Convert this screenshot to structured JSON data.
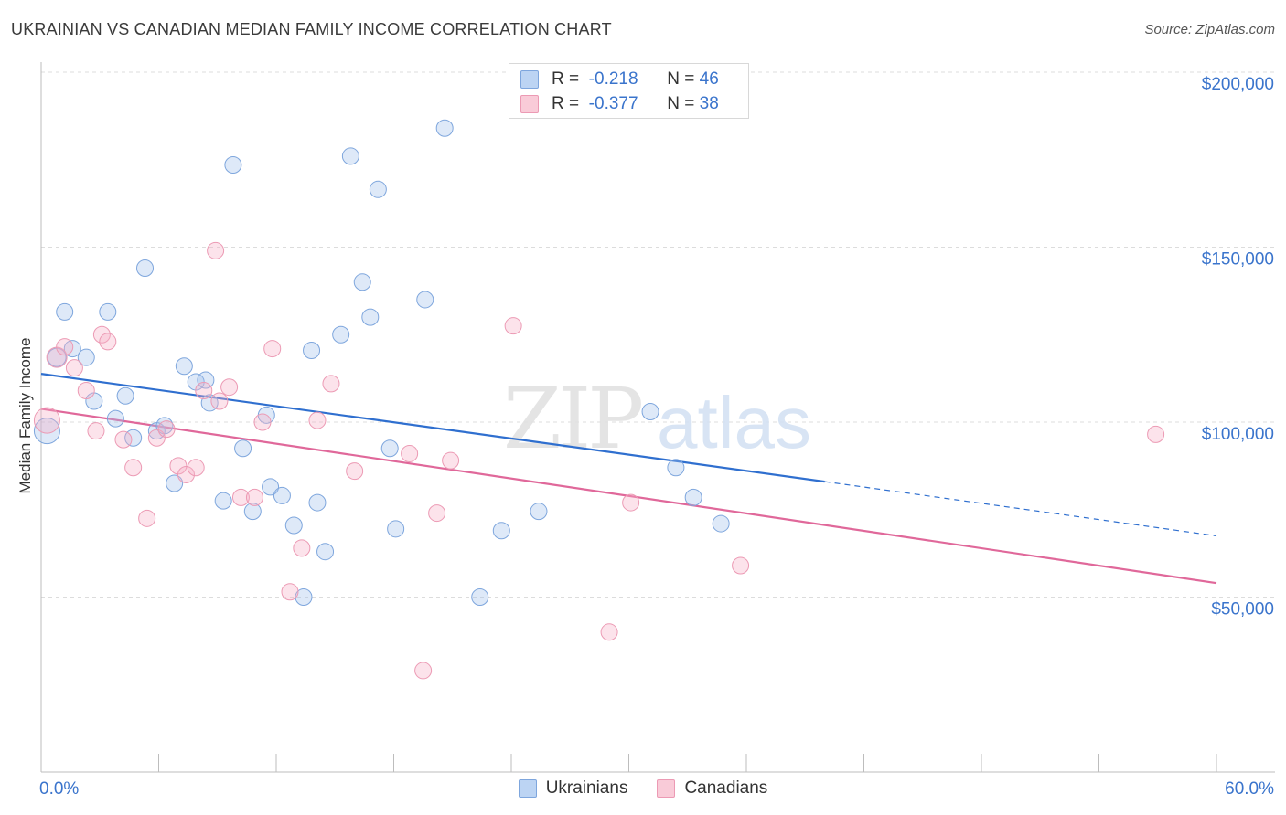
{
  "header": {
    "title": "UKRAINIAN VS CANADIAN MEDIAN FAMILY INCOME CORRELATION CHART",
    "source": "Source: ZipAtlas.com"
  },
  "watermark": {
    "zip": "ZIP",
    "atlas": "atlas"
  },
  "legend_top": {
    "rows": [
      {
        "r_key": "R =",
        "r_value": "-0.218",
        "n_key": "N =",
        "n_value": "46",
        "color": "#5b8fd6"
      },
      {
        "r_key": "R =",
        "r_value": "-0.377",
        "n_key": "N =",
        "n_value": "38",
        "color": "#e87fa0"
      }
    ]
  },
  "legend_bottom": [
    {
      "label": "Ukrainians",
      "color": "#5b8fd6"
    },
    {
      "label": "Canadians",
      "color": "#e87fa0"
    }
  ],
  "chart_data": {
    "type": "scatter",
    "title": "UKRAINIAN VS CANADIAN MEDIAN FAMILY INCOME CORRELATION CHART",
    "xlabel": "",
    "ylabel": "Median Family Income",
    "xlim": [
      0,
      60
    ],
    "ylim": [
      0,
      210000
    ],
    "x_tick_labels": [
      {
        "value": 0,
        "label": "0.0%"
      },
      {
        "value": 60,
        "label": "60.0%"
      }
    ],
    "y_ticks": [
      {
        "value": 50000,
        "label": "$50,000"
      },
      {
        "value": 100000,
        "label": "$100,000"
      },
      {
        "value": 150000,
        "label": "$150,000"
      },
      {
        "value": 200000,
        "label": "$200,000"
      }
    ],
    "grid": true,
    "series": [
      {
        "name": "Ukrainians",
        "color": "#5b8fd6",
        "r": -0.218,
        "n": 46,
        "trend": {
          "x0": 0,
          "y0": 113800,
          "x1": 40,
          "y1": 83000,
          "dashed_to": 60,
          "dashed_y": 67500
        },
        "points": [
          [
            0.3,
            97500,
            14
          ],
          [
            0.8,
            118500,
            10
          ],
          [
            1.2,
            131500,
            9
          ],
          [
            1.6,
            121000,
            9
          ],
          [
            2.3,
            118500,
            9
          ],
          [
            2.7,
            106000,
            9
          ],
          [
            3.4,
            131500,
            9
          ],
          [
            3.8,
            101000,
            9
          ],
          [
            4.3,
            107500,
            9
          ],
          [
            4.7,
            95500,
            9
          ],
          [
            5.3,
            144000,
            9
          ],
          [
            5.9,
            97500,
            9
          ],
          [
            6.3,
            99000,
            9
          ],
          [
            6.8,
            82500,
            9
          ],
          [
            7.3,
            116000,
            9
          ],
          [
            7.9,
            111500,
            9
          ],
          [
            8.4,
            112000,
            9
          ],
          [
            8.6,
            105500,
            9
          ],
          [
            9.3,
            77500,
            9
          ],
          [
            9.8,
            173500,
            9
          ],
          [
            10.3,
            92500,
            9
          ],
          [
            10.8,
            74500,
            9
          ],
          [
            11.5,
            102000,
            9
          ],
          [
            11.7,
            81500,
            9
          ],
          [
            12.3,
            79000,
            9
          ],
          [
            12.9,
            70500,
            9
          ],
          [
            13.4,
            50000,
            9
          ],
          [
            13.8,
            120500,
            9
          ],
          [
            14.1,
            77000,
            9
          ],
          [
            14.5,
            63000,
            9
          ],
          [
            15.3,
            125000,
            9
          ],
          [
            15.8,
            176000,
            9
          ],
          [
            16.4,
            140000,
            9
          ],
          [
            16.8,
            130000,
            9
          ],
          [
            17.2,
            166500,
            9
          ],
          [
            17.8,
            92500,
            9
          ],
          [
            18.1,
            69500,
            9
          ],
          [
            19.6,
            135000,
            9
          ],
          [
            20.6,
            184000,
            9
          ],
          [
            22.4,
            50000,
            9
          ],
          [
            23.5,
            69000,
            9
          ],
          [
            25.4,
            74500,
            9
          ],
          [
            31.1,
            103000,
            9
          ],
          [
            32.4,
            87000,
            9
          ],
          [
            33.3,
            78500,
            9
          ],
          [
            34.7,
            71000,
            9
          ]
        ]
      },
      {
        "name": "Canadians",
        "color": "#e87fa0",
        "r": -0.377,
        "n": 38,
        "trend": {
          "x0": 0,
          "y0": 103800,
          "x1": 60,
          "y1": 54000
        },
        "points": [
          [
            0.3,
            100500,
            14
          ],
          [
            0.8,
            118500,
            11
          ],
          [
            1.2,
            121500,
            9
          ],
          [
            1.7,
            115500,
            9
          ],
          [
            2.3,
            109000,
            9
          ],
          [
            2.8,
            97500,
            9
          ],
          [
            3.1,
            125000,
            9
          ],
          [
            3.4,
            123000,
            9
          ],
          [
            4.2,
            95000,
            9
          ],
          [
            4.7,
            87000,
            9
          ],
          [
            5.4,
            72500,
            9
          ],
          [
            5.9,
            95500,
            9
          ],
          [
            6.4,
            98000,
            9
          ],
          [
            7.0,
            87500,
            9
          ],
          [
            7.4,
            85000,
            9
          ],
          [
            7.9,
            87000,
            9
          ],
          [
            8.3,
            109000,
            9
          ],
          [
            8.9,
            149000,
            9
          ],
          [
            9.1,
            106000,
            9
          ],
          [
            9.6,
            110000,
            9
          ],
          [
            10.2,
            78500,
            9
          ],
          [
            10.9,
            78500,
            9
          ],
          [
            11.3,
            100000,
            9
          ],
          [
            11.8,
            121000,
            9
          ],
          [
            12.7,
            51500,
            9
          ],
          [
            13.3,
            64000,
            9
          ],
          [
            14.1,
            100500,
            9
          ],
          [
            14.8,
            111000,
            9
          ],
          [
            16.0,
            86000,
            9
          ],
          [
            18.8,
            91000,
            9
          ],
          [
            19.5,
            29000,
            9
          ],
          [
            20.2,
            74000,
            9
          ],
          [
            20.9,
            89000,
            9
          ],
          [
            24.1,
            127500,
            9
          ],
          [
            29.0,
            40000,
            9
          ],
          [
            30.1,
            77000,
            9
          ],
          [
            35.7,
            59000,
            9
          ],
          [
            56.9,
            96500,
            9
          ]
        ]
      }
    ]
  }
}
